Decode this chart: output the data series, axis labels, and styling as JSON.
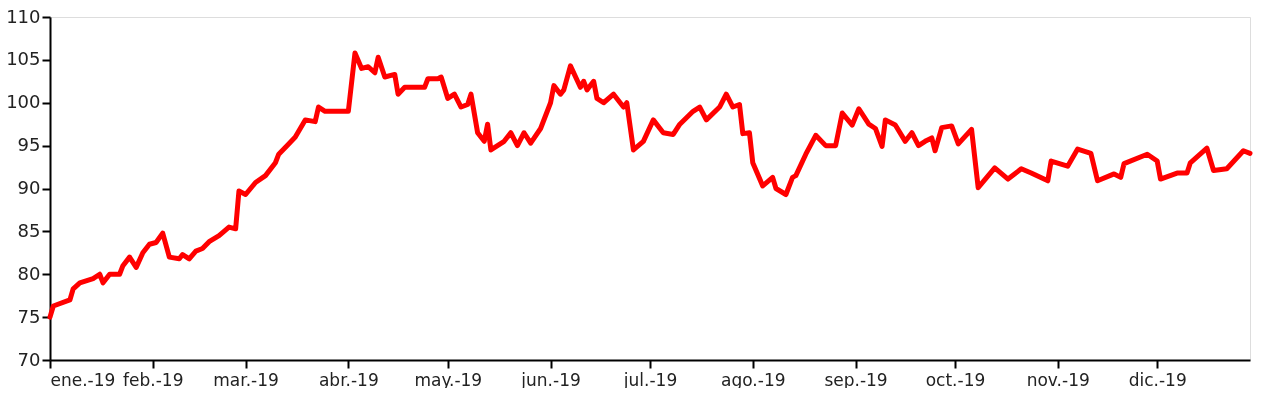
{
  "chart_data": {
    "type": "line",
    "x": [
      "2019-01-01",
      "2019-01-02",
      "2019-01-07",
      "2019-01-08",
      "2019-01-10",
      "2019-01-14",
      "2019-01-16",
      "2019-01-17",
      "2019-01-19",
      "2019-01-22",
      "2019-01-23",
      "2019-01-25",
      "2019-01-27",
      "2019-01-29",
      "2019-01-31",
      "2019-02-02",
      "2019-02-04",
      "2019-02-06",
      "2019-02-09",
      "2019-02-10",
      "2019-02-12",
      "2019-02-14",
      "2019-02-16",
      "2019-02-18",
      "2019-02-21",
      "2019-02-24",
      "2019-02-26",
      "2019-02-27",
      "2019-03-01",
      "2019-03-04",
      "2019-03-07",
      "2019-03-10",
      "2019-03-11",
      "2019-03-14",
      "2019-03-16",
      "2019-03-19",
      "2019-03-22",
      "2019-03-23",
      "2019-03-25",
      "2019-04-01",
      "2019-04-03",
      "2019-04-05",
      "2019-04-07",
      "2019-04-09",
      "2019-04-10",
      "2019-04-12",
      "2019-04-15",
      "2019-04-16",
      "2019-04-18",
      "2019-04-24",
      "2019-04-25",
      "2019-04-28",
      "2019-04-29",
      "2019-05-01",
      "2019-05-03",
      "2019-05-05",
      "2019-05-07",
      "2019-05-08",
      "2019-05-10",
      "2019-05-12",
      "2019-05-13",
      "2019-05-14",
      "2019-05-18",
      "2019-05-20",
      "2019-05-22",
      "2019-05-24",
      "2019-05-26",
      "2019-05-29",
      "2019-06-01",
      "2019-06-02",
      "2019-06-04",
      "2019-06-05",
      "2019-06-07",
      "2019-06-10",
      "2019-06-11",
      "2019-06-12",
      "2019-06-14",
      "2019-06-15",
      "2019-06-17",
      "2019-06-20",
      "2019-06-23",
      "2019-06-24",
      "2019-06-26",
      "2019-06-29",
      "2019-07-02",
      "2019-07-05",
      "2019-07-08",
      "2019-07-10",
      "2019-07-14",
      "2019-07-16",
      "2019-07-18",
      "2019-07-22",
      "2019-07-24",
      "2019-07-26",
      "2019-07-28",
      "2019-07-29",
      "2019-07-31",
      "2019-08-01",
      "2019-08-04",
      "2019-08-07",
      "2019-08-08",
      "2019-08-11",
      "2019-08-13",
      "2019-08-14",
      "2019-08-17",
      "2019-08-20",
      "2019-08-23",
      "2019-08-26",
      "2019-08-28",
      "2019-08-31",
      "2019-09-02",
      "2019-09-05",
      "2019-09-07",
      "2019-09-09",
      "2019-09-10",
      "2019-09-13",
      "2019-09-16",
      "2019-09-18",
      "2019-09-20",
      "2019-09-22",
      "2019-09-24",
      "2019-09-25",
      "2019-09-27",
      "2019-09-30",
      "2019-10-02",
      "2019-10-06",
      "2019-10-08",
      "2019-10-13",
      "2019-10-17",
      "2019-10-21",
      "2019-10-24",
      "2019-10-29",
      "2019-10-30",
      "2019-11-04",
      "2019-11-07",
      "2019-11-11",
      "2019-11-13",
      "2019-11-18",
      "2019-11-20",
      "2019-11-21",
      "2019-11-28",
      "2019-12-01",
      "2019-12-02",
      "2019-12-07",
      "2019-12-10",
      "2019-12-11",
      "2019-12-16",
      "2019-12-18",
      "2019-12-22",
      "2019-12-27",
      "2019-12-29"
    ],
    "series": [
      {
        "color": "#ff0000",
        "values": [
          75.0,
          76.3,
          77.0,
          78.3,
          79.0,
          79.5,
          80.0,
          79.0,
          80.0,
          80.0,
          81.0,
          82.0,
          80.8,
          82.5,
          83.5,
          83.7,
          84.8,
          82.0,
          81.8,
          82.3,
          81.8,
          82.7,
          83.0,
          83.8,
          84.5,
          85.5,
          85.3,
          89.7,
          89.3,
          90.7,
          91.5,
          93.0,
          94.0,
          95.2,
          96.0,
          98.0,
          97.8,
          99.5,
          99.0,
          99.0,
          105.8,
          104.0,
          104.2,
          103.5,
          105.3,
          103.0,
          103.3,
          101.0,
          101.8,
          101.8,
          102.8,
          102.8,
          103.0,
          100.5,
          101.0,
          99.5,
          99.8,
          101.0,
          96.5,
          95.5,
          97.5,
          94.5,
          95.5,
          96.5,
          95.0,
          96.5,
          95.3,
          97.0,
          100.0,
          102.0,
          101.0,
          101.5,
          104.3,
          101.8,
          102.5,
          101.5,
          102.5,
          100.5,
          100.0,
          101.0,
          99.5,
          100.0,
          94.5,
          95.5,
          98.0,
          96.5,
          96.3,
          97.5,
          99.0,
          99.5,
          98.0,
          99.5,
          101.0,
          99.5,
          99.8,
          96.4,
          96.5,
          93.0,
          90.3,
          91.3,
          90.0,
          89.3,
          91.3,
          91.5,
          94.0,
          96.2,
          95.0,
          95.0,
          98.8,
          97.4,
          99.3,
          97.5,
          97.0,
          94.9,
          98.0,
          97.4,
          95.5,
          96.5,
          95.0,
          95.5,
          95.9,
          94.4,
          97.1,
          97.3,
          95.2,
          96.9,
          90.1,
          92.4,
          91.1,
          92.3,
          91.8,
          90.9,
          93.2,
          92.6,
          94.6,
          94.1,
          90.9,
          91.7,
          91.3,
          92.9,
          94.0,
          93.2,
          91.1,
          91.8,
          91.8,
          93.0,
          94.7,
          92.1,
          92.3,
          94.4,
          94.1
        ]
      }
    ],
    "xlim": [
      "2019-01-01",
      "2019-12-29"
    ],
    "xticks": [
      {
        "value": "2019-01-01",
        "label": "ene.-19"
      },
      {
        "value": "2019-02-01",
        "label": "feb.-19"
      },
      {
        "value": "2019-03-01",
        "label": "mar.-19"
      },
      {
        "value": "2019-04-01",
        "label": "abr.-19"
      },
      {
        "value": "2019-05-01",
        "label": "may.-19"
      },
      {
        "value": "2019-06-01",
        "label": "jun.-19"
      },
      {
        "value": "2019-07-01",
        "label": "jul.-19"
      },
      {
        "value": "2019-08-01",
        "label": "ago.-19"
      },
      {
        "value": "2019-09-01",
        "label": "sep.-19"
      },
      {
        "value": "2019-10-01",
        "label": "oct.-19"
      },
      {
        "value": "2019-11-01",
        "label": "nov.-19"
      },
      {
        "value": "2019-12-01",
        "label": "dic.-19"
      }
    ],
    "ylim": [
      70,
      110
    ],
    "yticks": [
      70,
      75,
      80,
      85,
      90,
      95,
      100,
      105,
      110
    ],
    "grid": false,
    "legend": false,
    "marker": "none",
    "line_style": "solid"
  }
}
